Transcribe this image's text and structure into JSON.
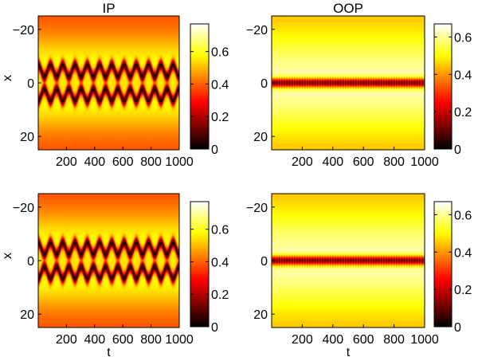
{
  "chart_data": [
    {
      "type": "heatmap",
      "title": "IP",
      "xlabel": "",
      "ylabel": "x",
      "x_ticks": [
        "200",
        "400",
        "600",
        "800",
        "1000"
      ],
      "x_tick_values": [
        200,
        400,
        600,
        800,
        1000
      ],
      "xlim": [
        0,
        1000
      ],
      "y_ticks": [
        "−20",
        "0",
        "20"
      ],
      "y_tick_values": [
        -20,
        0,
        20
      ],
      "ylim": [
        -25,
        25
      ],
      "y_reversed": true,
      "colormap": "hot",
      "colorbar_ticks": [
        "0",
        "0.2",
        "0.4",
        "0.6"
      ],
      "colorbar_tick_values": [
        0,
        0.2,
        0.4,
        0.6
      ],
      "clim": [
        0,
        0.77
      ],
      "pattern": "braided",
      "center_value": 0.55,
      "band_value": 0.03,
      "band_offset": 4.5,
      "band_amplitude": 2.2,
      "band_width": 1.5,
      "oscillations": 11.5
    },
    {
      "type": "heatmap",
      "title": "OOP",
      "xlabel": "",
      "ylabel": "",
      "x_ticks": [
        "200",
        "400",
        "600",
        "800",
        "1000"
      ],
      "x_tick_values": [
        200,
        400,
        600,
        800,
        1000
      ],
      "xlim": [
        0,
        1000
      ],
      "y_ticks": [
        "−20",
        "0",
        "20"
      ],
      "y_tick_values": [
        -20,
        0,
        20
      ],
      "ylim": [
        -25,
        25
      ],
      "y_reversed": true,
      "colormap": "hot",
      "colorbar_ticks": [
        "0",
        "0.2",
        "0.4",
        "0.6"
      ],
      "colorbar_tick_values": [
        0,
        0.2,
        0.4,
        0.6
      ],
      "clim": [
        0,
        0.67
      ],
      "pattern": "striped",
      "center_value": 0.05,
      "band_value": 0.62,
      "band_offset": 0,
      "band_amplitude": 0,
      "band_width": 2.5,
      "oscillations": 60
    },
    {
      "type": "heatmap",
      "title": "",
      "xlabel": "t",
      "ylabel": "x",
      "x_ticks": [
        "200",
        "400",
        "600",
        "800",
        "1000"
      ],
      "x_tick_values": [
        200,
        400,
        600,
        800,
        1000
      ],
      "xlim": [
        0,
        1000
      ],
      "y_ticks": [
        "−20",
        "0",
        "20"
      ],
      "y_tick_values": [
        -20,
        0,
        20
      ],
      "ylim": [
        -25,
        25
      ],
      "y_reversed": true,
      "colormap": "hot",
      "colorbar_ticks": [
        "0",
        "0.2",
        "0.4",
        "0.6"
      ],
      "colorbar_tick_values": [
        0,
        0.2,
        0.4,
        0.6
      ],
      "clim": [
        0,
        0.77
      ],
      "pattern": "braided",
      "center_value": 0.55,
      "band_value": 0.03,
      "band_offset": 4.5,
      "band_amplitude": 2.2,
      "band_width": 1.5,
      "oscillations": 11.5
    },
    {
      "type": "heatmap",
      "title": "",
      "xlabel": "t",
      "ylabel": "",
      "x_ticks": [
        "200",
        "400",
        "600",
        "800",
        "1000"
      ],
      "x_tick_values": [
        200,
        400,
        600,
        800,
        1000
      ],
      "xlim": [
        0,
        1000
      ],
      "y_ticks": [
        "−20",
        "0",
        "20"
      ],
      "y_tick_values": [
        -20,
        0,
        20
      ],
      "ylim": [
        -25,
        25
      ],
      "y_reversed": true,
      "colormap": "hot",
      "colorbar_ticks": [
        "0",
        "0.2",
        "0.4",
        "0.6"
      ],
      "colorbar_tick_values": [
        0,
        0.2,
        0.4,
        0.6
      ],
      "clim": [
        0,
        0.67
      ],
      "pattern": "striped",
      "center_value": 0.05,
      "band_value": 0.62,
      "band_offset": 0,
      "band_amplitude": 0,
      "band_width": 2.5,
      "oscillations": 60
    }
  ]
}
